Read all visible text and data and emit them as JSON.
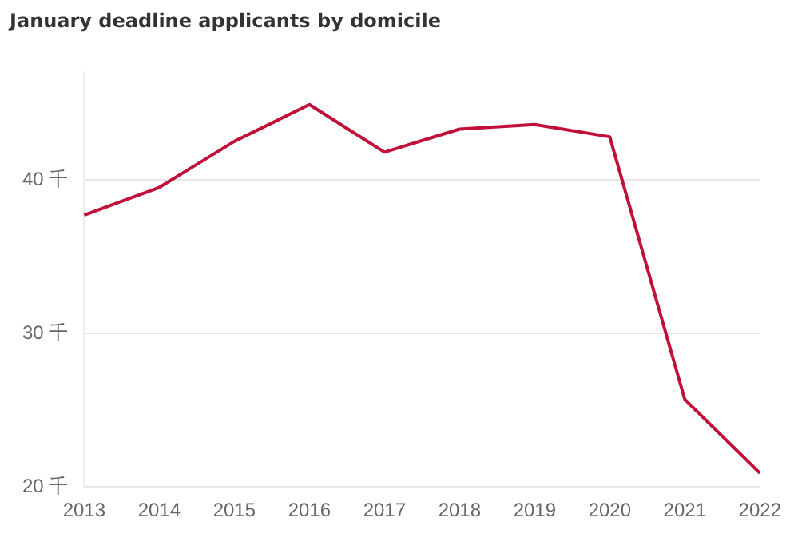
{
  "chart_data": {
    "type": "line",
    "title": "January deadline applicants by domicile",
    "categories": [
      "2013",
      "2014",
      "2015",
      "2016",
      "2017",
      "2018",
      "2019",
      "2020",
      "2021",
      "2022"
    ],
    "series": [
      {
        "color": "#c0103a",
        "values": [
          37.7,
          39.5,
          42.5,
          44.9,
          41.8,
          43.3,
          43.6,
          42.8,
          25.7,
          20.9
        ]
      }
    ],
    "ylim": [
      20,
      47
    ],
    "yticks": [
      {
        "value": 20,
        "label": "20 千"
      },
      {
        "value": 30,
        "label": "30 千"
      },
      {
        "value": 40,
        "label": "40 千"
      }
    ],
    "grid": "y",
    "legend": false,
    "marker": "none",
    "line_style": "solid"
  }
}
